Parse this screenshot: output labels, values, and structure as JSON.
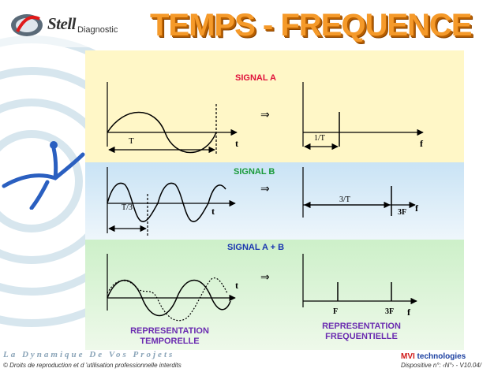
{
  "header": {
    "logo_brand": "Stell",
    "logo_sub": "Diagnostic",
    "title": "TEMPS - FREQUENCE"
  },
  "signals": {
    "a_label": "SIGNAL A",
    "b_label": "SIGNAL B",
    "ab_label": "SIGNAL A + B"
  },
  "annotations": {
    "period_a": "T",
    "period_b": "T/3",
    "freq_a": "1/T",
    "freq_b": "3/T",
    "freq_f": "F",
    "freq_3f": "3F",
    "time_axis": "t",
    "freq_axis": "f",
    "arrow": "⇒"
  },
  "captions": {
    "temporal": "REPRESENTATION TEMPORELLE",
    "frequency": "REPRESENTATION FREQUENTIELLE"
  },
  "footer": {
    "slogan": "La Dynamique De Vos Projets",
    "rights": "© Droits de reproduction et d 'utilisation professionnelle interdits",
    "company_mvi": "MVI",
    "company_rest": " technologies",
    "slide": "Dispositive n°: ‹N°› - V10.04/"
  },
  "colors": {
    "title": "#f59a2a",
    "signal_a": "#e0103a",
    "signal_b": "#1a9a3a",
    "signal_ab": "#1a36b0",
    "caption": "#6a2bb0"
  }
}
